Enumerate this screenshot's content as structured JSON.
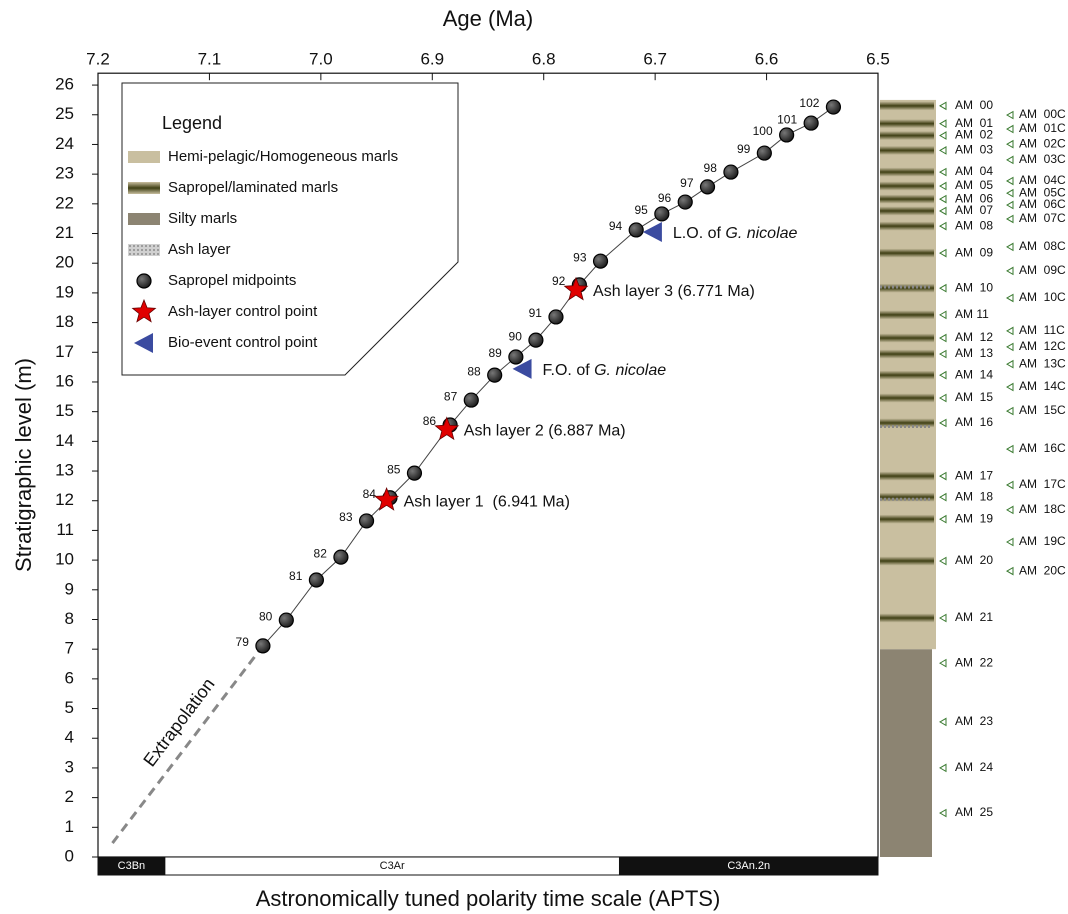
{
  "chart_data": {
    "type": "scatter",
    "xlabel": "Age (Ma)",
    "ylabel": "Stratigraphic level (m)",
    "bottom_label": "Astronomically tuned polarity time scale (APTS)",
    "xlim": [
      7.2,
      6.5
    ],
    "xticks": [
      7.2,
      7.1,
      {
        "value": 7,
        "label": "7.0"
      },
      6.9,
      6.8,
      6.7,
      6.6,
      6.5
    ],
    "ylim": [
      0,
      26.4
    ],
    "yticks": [
      0,
      1,
      2,
      3,
      4,
      5,
      6,
      7,
      8,
      9,
      10,
      11,
      12,
      13,
      14,
      15,
      16,
      17,
      18,
      19,
      20,
      21,
      22,
      23,
      24,
      25,
      26
    ],
    "series": [
      {
        "name": "Sapropel midpoints",
        "marker": "circle",
        "color": "#333333",
        "line": true,
        "labels": [
          "79",
          "80",
          "81",
          "82",
          "83",
          "84",
          "85",
          "86",
          "87",
          "88",
          "89",
          "90",
          "91",
          "92",
          "93",
          "94",
          "95",
          "96",
          "97",
          "98",
          "99",
          "100",
          "101",
          "102"
        ],
        "x": [
          7.052,
          7.031,
          7.004,
          6.982,
          6.959,
          6.938,
          6.916,
          6.884,
          6.865,
          6.844,
          6.825,
          6.807,
          6.789,
          6.768,
          6.749,
          6.717,
          6.694,
          6.673,
          6.653,
          6.632,
          6.602,
          6.582,
          6.56,
          6.54
        ],
        "values": [
          7.11,
          7.98,
          9.33,
          10.1,
          11.32,
          12.1,
          12.93,
          14.55,
          15.39,
          16.23,
          16.84,
          17.41,
          18.19,
          19.27,
          20.07,
          21.12,
          21.66,
          22.06,
          22.57,
          23.07,
          23.71,
          24.32,
          24.72,
          25.26
        ]
      },
      {
        "name": "Ash-layer control point",
        "marker": "star",
        "color": "#e00000",
        "labels": [
          "Ash layer 1  (6.941 Ma)",
          "Ash layer 2 (6.887 Ma)",
          "Ash layer 3 (6.771 Ma)"
        ],
        "x": [
          6.941,
          6.887,
          6.771
        ],
        "values": [
          12.02,
          14.4,
          19.1
        ]
      },
      {
        "name": "Bio-event control point",
        "marker": "triangle",
        "color": "#3b4ba0",
        "label_prefix": [
          "F.O. of ",
          "L.O. of "
        ],
        "label_species": [
          "G. nicolae",
          "G. nicolae"
        ],
        "x": [
          6.819,
          6.702
        ],
        "values": [
          16.44,
          21.05
        ]
      }
    ],
    "extrapolation": {
      "label": "Extrapolation",
      "color": "#888888",
      "x": [
        7.187,
        7.052
      ],
      "values": [
        0.47,
        7.11
      ]
    },
    "legend": {
      "title": "Legend",
      "lithology": [
        {
          "name": "Hemi-pelagic/Homogeneous marls",
          "color": "#c9bfa0"
        },
        {
          "name": "Sapropel/laminated marls",
          "color": "#4a4a1c"
        },
        {
          "name": "Silty marls",
          "color": "#8c8472"
        },
        {
          "name": "Ash layer",
          "color": "#b4b4b4"
        }
      ]
    },
    "polarity": [
      {
        "name": "C3Bn",
        "start": 7.2,
        "end": 7.14,
        "color": "#111111"
      },
      {
        "name": "C3Ar",
        "start": 7.14,
        "end": 6.732,
        "color": "#ffffff"
      },
      {
        "name": "C3An.2n",
        "start": 6.732,
        "end": 6.5,
        "color": "#111111"
      }
    ],
    "column": {
      "silty_marls": [
        0,
        7.0
      ],
      "marls": [
        7.0,
        25.5
      ],
      "ash_layers": [
        12.05,
        14.5,
        19.2
      ],
      "cycles": [
        {
          "label": "AM  00",
          "level": 25.3
        },
        {
          "label": "AM  01",
          "level": 24.7
        },
        {
          "label": "AM  02",
          "level": 24.3
        },
        {
          "label": "AM  03",
          "level": 23.8
        },
        {
          "label": "AM  04",
          "level": 23.07
        },
        {
          "label": "AM  05",
          "level": 22.6
        },
        {
          "label": "AM  06",
          "level": 22.16
        },
        {
          "label": "AM  07",
          "level": 21.76
        },
        {
          "label": "AM  08",
          "level": 21.25
        },
        {
          "label": "AM  09",
          "level": 20.34
        },
        {
          "label": "AM  10",
          "level": 19.16
        },
        {
          "label": "AM 11",
          "level": 18.26
        },
        {
          "label": "AM  12",
          "level": 17.48
        },
        {
          "label": "AM  13",
          "level": 16.94
        },
        {
          "label": "AM  14",
          "level": 16.23
        },
        {
          "label": "AM  15",
          "level": 15.46
        },
        {
          "label": "AM  16",
          "level": 14.62
        },
        {
          "label": "AM  17",
          "level": 12.83
        },
        {
          "label": "AM  18",
          "level": 12.12
        },
        {
          "label": "AM  19",
          "level": 11.38
        },
        {
          "label": "AM  20",
          "level": 9.97
        },
        {
          "label": "AM  21",
          "level": 8.05
        },
        {
          "label": "AM  22",
          "level": 6.53
        },
        {
          "label": "AM  23",
          "level": 4.55
        },
        {
          "label": "AM  24",
          "level": 3.0
        },
        {
          "label": "AM  25",
          "level": 1.48
        }
      ],
      "cycles_c": [
        {
          "label": "AM  00C",
          "level": 24.99
        },
        {
          "label": "AM  01C",
          "level": 24.52
        },
        {
          "label": "AM  02C",
          "level": 24.01
        },
        {
          "label": "AM  03C",
          "level": 23.48
        },
        {
          "label": "AM  04C",
          "level": 22.77
        },
        {
          "label": "AM  05C",
          "level": 22.36
        },
        {
          "label": "AM  06C",
          "level": 21.96
        },
        {
          "label": "AM  07C",
          "level": 21.49
        },
        {
          "label": "AM  08C",
          "level": 20.55
        },
        {
          "label": "AM  09C",
          "level": 19.74
        },
        {
          "label": "AM  10C",
          "level": 18.83
        },
        {
          "label": "AM  11C",
          "level": 17.72
        },
        {
          "label": "AM  12C",
          "level": 17.18
        },
        {
          "label": "AM  13C",
          "level": 16.6
        },
        {
          "label": "AM  14C",
          "level": 15.83
        },
        {
          "label": "AM  15C",
          "level": 15.02
        },
        {
          "label": "AM  16C",
          "level": 13.74
        },
        {
          "label": "AM  17C",
          "level": 12.53
        },
        {
          "label": "AM  18C",
          "level": 11.69
        },
        {
          "label": "AM  19C",
          "level": 10.61
        },
        {
          "label": "AM  20C",
          "level": 9.63
        }
      ]
    }
  }
}
